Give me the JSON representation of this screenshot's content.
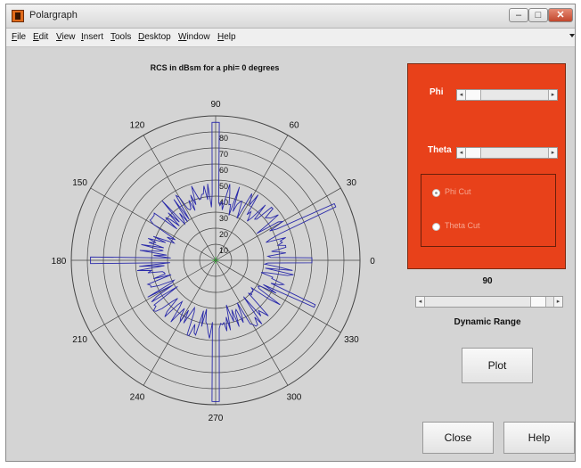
{
  "window": {
    "title": "Polargraph"
  },
  "menu": [
    "File",
    "Edit",
    "View",
    "Insert",
    "Tools",
    "Desktop",
    "Window",
    "Help"
  ],
  "plot": {
    "title": "RCS in dBsm for a phi= 0 degrees",
    "angle_labels": [
      {
        "deg": 0,
        "text": "0"
      },
      {
        "deg": 30,
        "text": "30"
      },
      {
        "deg": 60,
        "text": "60"
      },
      {
        "deg": 90,
        "text": "90"
      },
      {
        "deg": 120,
        "text": "120"
      },
      {
        "deg": 150,
        "text": "150"
      },
      {
        "deg": 180,
        "text": "180"
      },
      {
        "deg": 210,
        "text": "210"
      },
      {
        "deg": 240,
        "text": "240"
      },
      {
        "deg": 270,
        "text": "270"
      },
      {
        "deg": 300,
        "text": "300"
      },
      {
        "deg": 330,
        "text": "330"
      }
    ],
    "radial_labels": [
      "10",
      "20",
      "30",
      "40",
      "50",
      "60",
      "70",
      "80"
    ],
    "r_max": 90,
    "line_color": "#2a2aaa",
    "grid_color": "#444444"
  },
  "panel": {
    "background": "#e8411a",
    "phi_label": "Phi",
    "theta_label": "Theta",
    "radio_phi": "Phi Cut",
    "radio_theta": "Theta Cut",
    "selected": "Phi Cut"
  },
  "dynamic_range": {
    "value": "90",
    "label": "Dynamic Range",
    "fraction": 0.9
  },
  "buttons": {
    "plot": "Plot",
    "close": "Close",
    "help": "Help"
  }
}
